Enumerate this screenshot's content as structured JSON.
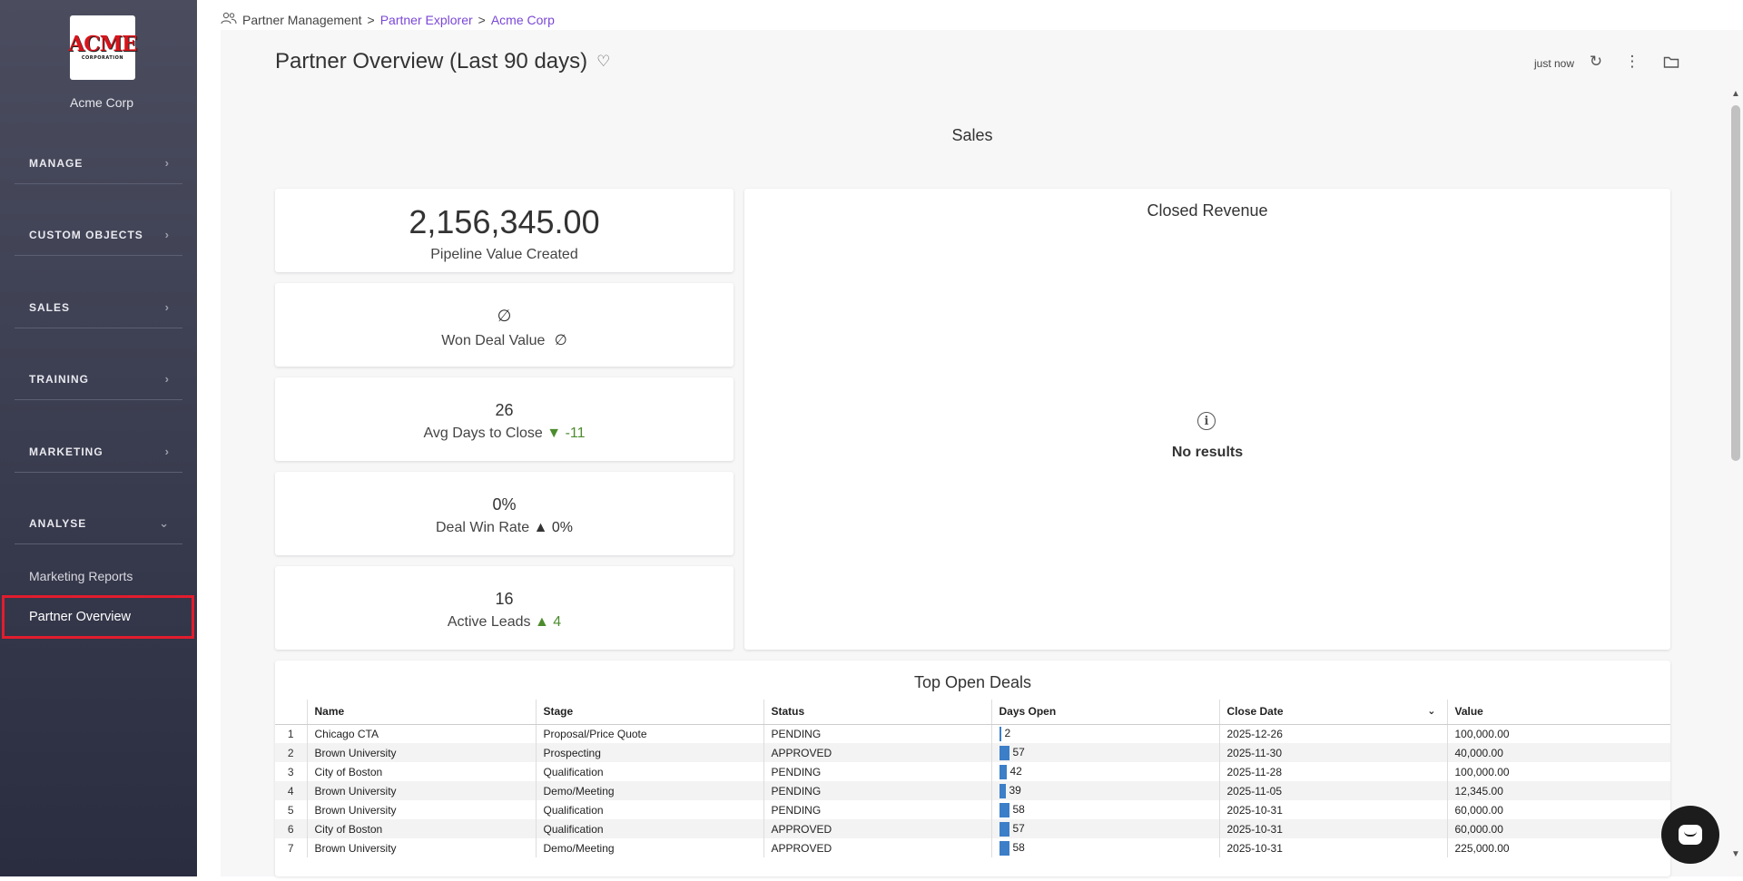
{
  "sidebar": {
    "logo_text": "ACME",
    "logo_subtext": "CORPORATION",
    "org_name": "Acme Corp",
    "sections": [
      {
        "label": "MANAGE"
      },
      {
        "label": "CUSTOM OBJECTS"
      },
      {
        "label": "SALES"
      },
      {
        "label": "TRAINING"
      },
      {
        "label": "MARKETING"
      },
      {
        "label": "ANALYSE"
      }
    ],
    "sub_items": {
      "marketing_reports": "Marketing Reports",
      "partner_overview": "Partner Overview"
    }
  },
  "breadcrumb": {
    "root": "Partner Management",
    "sep1": ">",
    "explorer": "Partner Explorer",
    "sep2": ">",
    "current": "Acme Corp"
  },
  "header": {
    "title": "Partner Overview (Last 90 days)",
    "refreshed": "just now"
  },
  "section_title": "Sales",
  "kpis": {
    "pipeline": {
      "value": "2,156,345.00",
      "label": "Pipeline Value Created"
    },
    "won": {
      "value": "∅",
      "label": "Won Deal Value",
      "delta": "∅"
    },
    "avg_days": {
      "value": "26",
      "label": "Avg Days to Close",
      "delta": "▼ -11"
    },
    "win_rate": {
      "value": "0%",
      "label": "Deal Win Rate",
      "delta": "▲ 0%"
    },
    "active_leads": {
      "value": "16",
      "label": "Active Leads",
      "delta": "▲ 4"
    }
  },
  "closed_revenue": {
    "title": "Closed Revenue",
    "empty_icon": "i",
    "empty_text": "No results"
  },
  "top_deals": {
    "title": "Top Open Deals",
    "columns": {
      "name": "Name",
      "stage": "Stage",
      "status": "Status",
      "days_open": "Days Open",
      "close_date": "Close Date",
      "value": "Value"
    },
    "sort_indicator": "⌄",
    "rows": [
      {
        "n": "1",
        "name": "Chicago CTA",
        "stage": "Proposal/Price Quote",
        "status": "PENDING",
        "days": "2",
        "close": "2025-12-26",
        "value": "100,000.00"
      },
      {
        "n": "2",
        "name": "Brown University",
        "stage": "Prospecting",
        "status": "APPROVED",
        "days": "57",
        "close": "2025-11-30",
        "value": "40,000.00"
      },
      {
        "n": "3",
        "name": "City of Boston",
        "stage": "Qualification",
        "status": "PENDING",
        "days": "42",
        "close": "2025-11-28",
        "value": "100,000.00"
      },
      {
        "n": "4",
        "name": "Brown University",
        "stage": "Demo/Meeting",
        "status": "PENDING",
        "days": "39",
        "close": "2025-11-05",
        "value": "12,345.00"
      },
      {
        "n": "5",
        "name": "Brown University",
        "stage": "Qualification",
        "status": "PENDING",
        "days": "58",
        "close": "2025-10-31",
        "value": "60,000.00"
      },
      {
        "n": "6",
        "name": "City of Boston",
        "stage": "Qualification",
        "status": "APPROVED",
        "days": "57",
        "close": "2025-10-31",
        "value": "60,000.00"
      },
      {
        "n": "7",
        "name": "Brown University",
        "stage": "Demo/Meeting",
        "status": "APPROVED",
        "days": "58",
        "close": "2025-10-31",
        "value": "225,000.00"
      }
    ]
  },
  "colors": {
    "sidebar_top": "#4b4d5f",
    "sidebar_bottom": "#2a2c40",
    "active_border": "#e11d2e",
    "link": "#7a47d6",
    "positive_delta": "#4d8c2e",
    "days_bar": "#3c7ec8"
  },
  "icons": {
    "breadcrumb": "partners-icon",
    "favorite": "heart-icon",
    "refresh": "refresh-icon",
    "more": "kebab-menu-icon",
    "folder": "folder-icon",
    "chat": "chat-icon"
  }
}
